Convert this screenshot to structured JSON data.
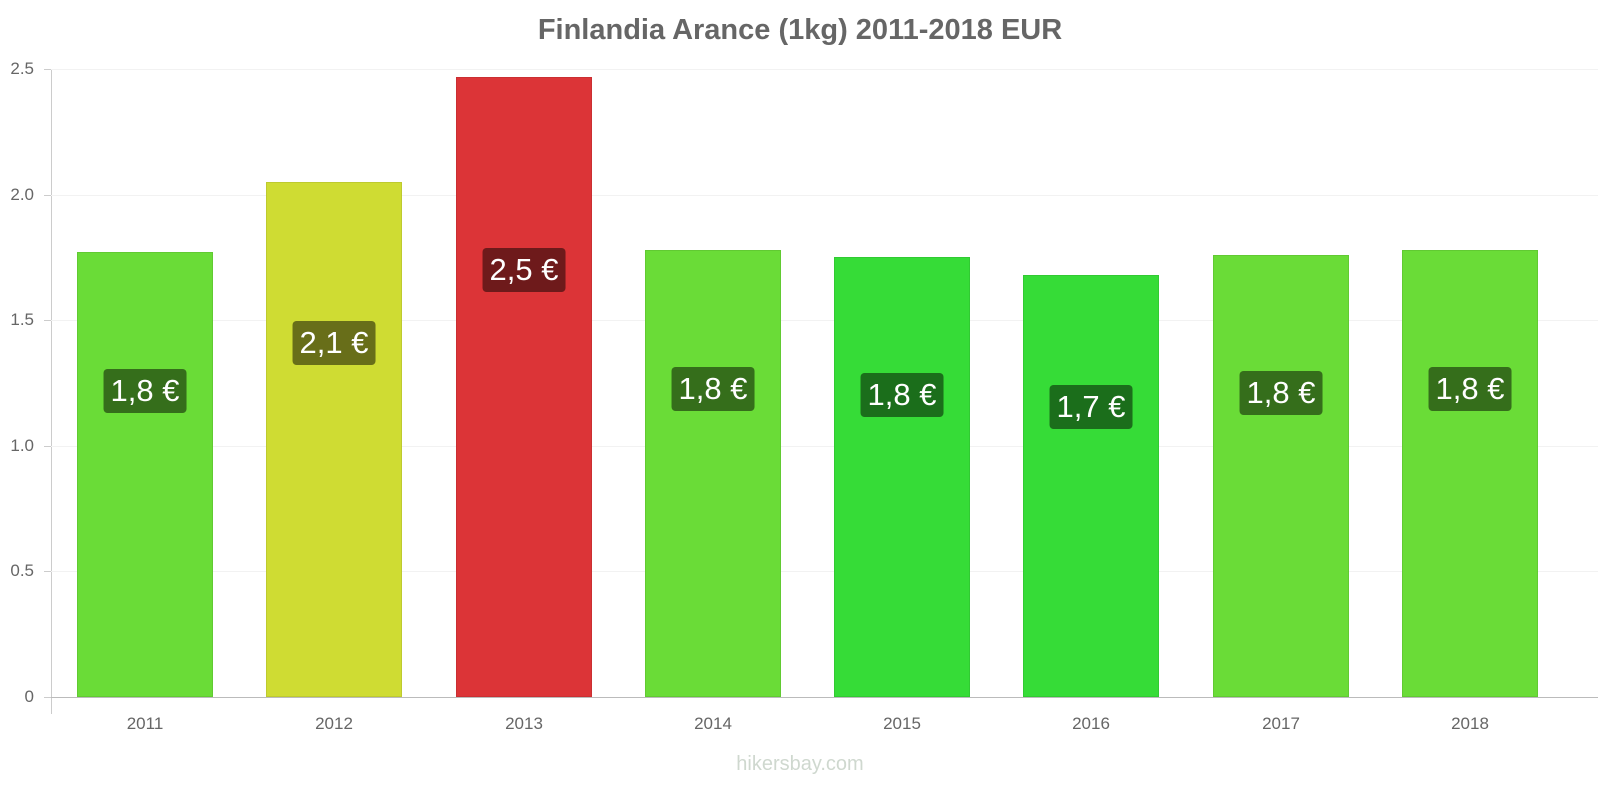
{
  "chart_data": {
    "type": "bar",
    "title": "Finlandia Arance (1kg) 2011-2018 EUR",
    "xlabel": "",
    "ylabel": "",
    "ylim": [
      0,
      2.5
    ],
    "yticks": [
      "0",
      "0.5",
      "1.0",
      "1.5",
      "2.0",
      "2.5"
    ],
    "categories": [
      "2011",
      "2012",
      "2013",
      "2014",
      "2015",
      "2016",
      "2017",
      "2018"
    ],
    "values": [
      1.77,
      2.05,
      2.47,
      1.78,
      1.75,
      1.68,
      1.76,
      1.78
    ],
    "value_labels": [
      "1,8 €",
      "2,1 €",
      "2,5 €",
      "1,8 €",
      "1,8 €",
      "1,7 €",
      "1,8 €",
      "1,8 €"
    ],
    "bar_colors": [
      "#6adc37",
      "#cfdc33",
      "#dc3437",
      "#6adc37",
      "#36dc37",
      "#36dc37",
      "#6adc37",
      "#6adc37"
    ],
    "label_colors": [
      "#356e1b",
      "#686e19",
      "#6e1a1b",
      "#356e1b",
      "#1b6e1b",
      "#1b6e1b",
      "#356e1b",
      "#356e1b"
    ],
    "grid": true,
    "legend": "none"
  },
  "title": "Finlandia Arance (1kg) 2011-2018 EUR",
  "y_axis": {
    "ticks": [
      "0",
      "0.5",
      "1.0",
      "1.5",
      "2.0",
      "2.5"
    ]
  },
  "x_axis": {
    "ticks": [
      "2011",
      "2012",
      "2013",
      "2014",
      "2015",
      "2016",
      "2017",
      "2018"
    ]
  },
  "bars": [
    {
      "year": "2011",
      "label": "1,8 €"
    },
    {
      "year": "2012",
      "label": "2,1 €"
    },
    {
      "year": "2013",
      "label": "2,5 €"
    },
    {
      "year": "2014",
      "label": "1,8 €"
    },
    {
      "year": "2015",
      "label": "1,8 €"
    },
    {
      "year": "2016",
      "label": "1,7 €"
    },
    {
      "year": "2017",
      "label": "1,8 €"
    },
    {
      "year": "2018",
      "label": "1,8 €"
    }
  ],
  "watermark": "hikersbay.com"
}
